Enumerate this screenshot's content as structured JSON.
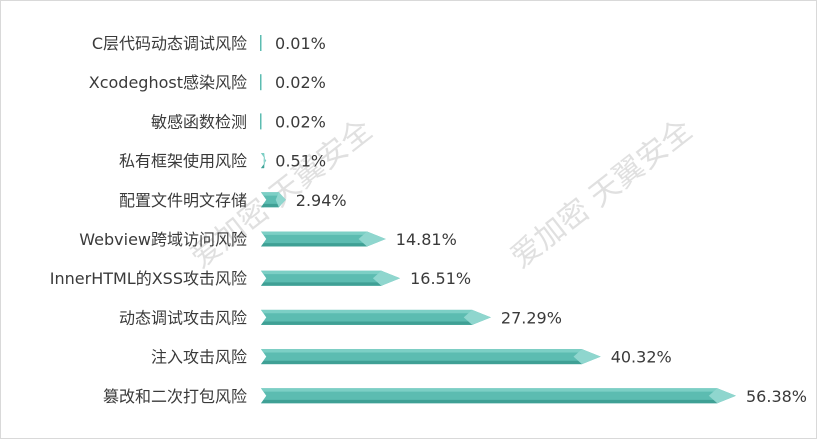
{
  "watermark_text": "爱加密 天翼安全",
  "colors": {
    "bar_body": "#5cbcb1",
    "bar_top": "#7ccfc5",
    "bar_bottom": "#3fa095",
    "bar_tip": "#8fd6ce",
    "tick": "#5cbcb1",
    "border": "#d9d9d9"
  },
  "chart_data": {
    "type": "bar",
    "orientation": "horizontal",
    "categories": [
      "C层代码动态调试风险",
      "Xcodeghost感染风险",
      "敏感函数检测",
      "私有框架使用风险",
      "配置文件明文存储",
      "Webview跨域访问风险",
      "InnerHTML的XSS攻击风险",
      "动态调试攻击风险",
      "注入攻击风险",
      "篡改和二次打包风险"
    ],
    "values": [
      0.01,
      0.02,
      0.02,
      0.51,
      2.94,
      14.81,
      16.51,
      27.29,
      40.32,
      56.38
    ],
    "value_labels": [
      "0.01%",
      "0.02%",
      "0.02%",
      "0.51%",
      "2.94%",
      "14.81%",
      "16.51%",
      "27.29%",
      "40.32%",
      "56.38%"
    ],
    "xlim": [
      0,
      56.38
    ],
    "grid": false,
    "title": "",
    "xlabel": "",
    "ylabel": ""
  }
}
